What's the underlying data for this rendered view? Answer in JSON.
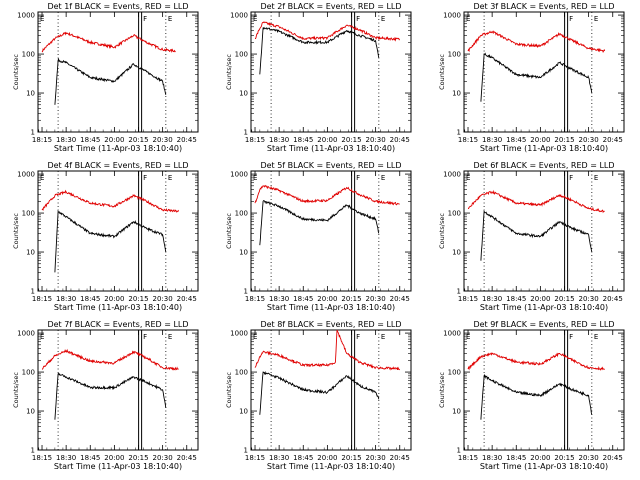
{
  "panels": [
    {
      "title": "Det 1f BLACK = Events, RED = LLD",
      "xlabel": "Start Time (11-Apr-03 18:10:40)",
      "ylabel": "Counts/sec",
      "letter_F": "F",
      "letter_E1": "E",
      "letter_E2": "E"
    },
    {
      "title": "Det 2f BLACK = Events, RED = LLD",
      "xlabel": "Start Time (11-Apr-03 18:10:40)",
      "ylabel": "Counts/sec",
      "letter_F": "F",
      "letter_E1": "E",
      "letter_E2": "E"
    },
    {
      "title": "Det 3f BLACK = Events, RED = LLD",
      "xlabel": "Start Time (11-Apr-03 18:10:40)",
      "ylabel": "Counts/sec",
      "letter_F": "F",
      "letter_E1": "E",
      "letter_E2": "E"
    },
    {
      "title": "Det 4f BLACK = Events, RED = LLD",
      "xlabel": "Start Time (11-Apr-03 18:10:40)",
      "ylabel": "Counts/sec",
      "letter_F": "F",
      "letter_E1": "E",
      "letter_E2": "E"
    },
    {
      "title": "Det 5f BLACK = Events, RED = LLD",
      "xlabel": "Start Time (11-Apr-03 18:10:40)",
      "ylabel": "Counts/sec",
      "letter_F": "F",
      "letter_E1": "E",
      "letter_E2": "E"
    },
    {
      "title": "Det 6f BLACK = Events, RED = LLD",
      "xlabel": "Start Time (11-Apr-03 18:10:40)",
      "ylabel": "Counts/sec",
      "letter_F": "F",
      "letter_E1": "E",
      "letter_E2": "E"
    },
    {
      "title": "Det 7f BLACK = Events, RED = LLD",
      "xlabel": "Start Time (11-Apr-03 18:10:40)",
      "ylabel": "Counts/sec",
      "letter_F": "F",
      "letter_E1": "E",
      "letter_E2": "E"
    },
    {
      "title": "Det 8f BLACK = Events, RED = LLD",
      "xlabel": "Start Time (11-Apr-03 18:10:40)",
      "ylabel": "Counts/sec",
      "letter_F": "F",
      "letter_E1": "E",
      "letter_E2": "E"
    },
    {
      "title": "Det 9f BLACK = Events, RED = LLD",
      "xlabel": "Start Time (11-Apr-03 18:10:40)",
      "ylabel": "Counts/sec",
      "letter_F": "F",
      "letter_E1": "E",
      "letter_E2": "E"
    }
  ],
  "x_ticks": [
    "18:15",
    "18:30",
    "18:45",
    "20:00",
    "20:15",
    "20:30",
    "20:45"
  ],
  "y_ticks": [
    "1",
    "10",
    "100",
    "1000"
  ],
  "chart_data": [
    {
      "type": "line",
      "title": "Det 1f BLACK = Events, RED = LLD",
      "xlabel": "Start Time (11-Apr-03 18:10:40)",
      "ylabel": "Counts/sec",
      "y_scale": "log",
      "ylim": [
        1,
        1200
      ],
      "x_tick_labels": [
        "18:15",
        "18:30",
        "18:45",
        "20:00",
        "20:15",
        "20:30",
        "20:45"
      ],
      "series": [
        {
          "name": "LLD",
          "color": "#e00000",
          "x": [
            "18:15",
            "18:23",
            "18:30",
            "18:45",
            "20:00",
            "20:12",
            "20:20",
            "20:30",
            "20:38"
          ],
          "y": [
            120,
            250,
            350,
            200,
            150,
            300,
            200,
            130,
            120
          ]
        },
        {
          "name": "Events",
          "color": "#000000",
          "x": [
            "18:23",
            "18:25",
            "18:30",
            "18:45",
            "20:00",
            "20:12",
            "20:20",
            "20:30",
            "20:32"
          ],
          "y": [
            5,
            70,
            60,
            25,
            20,
            55,
            35,
            20,
            9
          ]
        }
      ]
    },
    {
      "type": "line",
      "title": "Det 2f BLACK = Events, RED = LLD",
      "xlabel": "Start Time (11-Apr-03 18:10:40)",
      "ylabel": "Counts/sec",
      "y_scale": "log",
      "ylim": [
        1,
        1200
      ],
      "x_tick_labels": [
        "18:15",
        "18:30",
        "18:45",
        "20:00",
        "20:15",
        "20:30",
        "20:45"
      ],
      "series": [
        {
          "name": "LLD",
          "color": "#e00000",
          "x": [
            "18:15",
            "18:18",
            "18:20",
            "18:30",
            "18:45",
            "20:00",
            "20:12",
            "20:20",
            "20:30",
            "20:45"
          ],
          "y": [
            250,
            450,
            650,
            500,
            250,
            260,
            550,
            420,
            260,
            240
          ]
        },
        {
          "name": "Events",
          "color": "#000000",
          "x": [
            "18:18",
            "18:20",
            "18:30",
            "18:45",
            "20:00",
            "20:12",
            "20:20",
            "20:30",
            "20:32"
          ],
          "y": [
            30,
            480,
            380,
            200,
            200,
            400,
            300,
            220,
            80
          ]
        }
      ]
    },
    {
      "type": "line",
      "title": "Det 3f BLACK = Events, RED = LLD",
      "xlabel": "Start Time (11-Apr-03 18:10:40)",
      "ylabel": "Counts/sec",
      "y_scale": "log",
      "ylim": [
        1,
        1200
      ],
      "x_tick_labels": [
        "18:15",
        "18:30",
        "18:45",
        "20:00",
        "20:15",
        "20:30",
        "20:45"
      ],
      "series": [
        {
          "name": "LLD",
          "color": "#e00000",
          "x": [
            "18:15",
            "18:23",
            "18:30",
            "18:45",
            "20:00",
            "20:12",
            "20:20",
            "20:30",
            "20:40"
          ],
          "y": [
            120,
            300,
            380,
            180,
            160,
            330,
            220,
            140,
            120
          ]
        },
        {
          "name": "Events",
          "color": "#000000",
          "x": [
            "18:23",
            "18:25",
            "18:30",
            "18:45",
            "20:00",
            "20:12",
            "20:20",
            "20:30",
            "20:32"
          ],
          "y": [
            6,
            100,
            80,
            30,
            25,
            60,
            40,
            25,
            10
          ]
        }
      ]
    },
    {
      "type": "line",
      "title": "Det 4f BLACK = Events, RED = LLD",
      "xlabel": "Start Time (11-Apr-03 18:10:40)",
      "ylabel": "Counts/sec",
      "y_scale": "log",
      "ylim": [
        1,
        1200
      ],
      "x_tick_labels": [
        "18:15",
        "18:30",
        "18:45",
        "20:00",
        "20:15",
        "20:30",
        "20:45"
      ],
      "series": [
        {
          "name": "LLD",
          "color": "#e00000",
          "x": [
            "18:15",
            "18:23",
            "18:30",
            "18:45",
            "20:00",
            "20:12",
            "20:20",
            "20:30",
            "20:40"
          ],
          "y": [
            120,
            280,
            350,
            180,
            150,
            280,
            200,
            120,
            110
          ]
        },
        {
          "name": "Events",
          "color": "#000000",
          "x": [
            "18:23",
            "18:25",
            "18:30",
            "18:45",
            "20:00",
            "20:12",
            "20:20",
            "20:30",
            "20:32"
          ],
          "y": [
            3,
            110,
            80,
            30,
            25,
            60,
            40,
            28,
            10
          ]
        }
      ]
    },
    {
      "type": "line",
      "title": "Det 5f BLACK = Events, RED = LLD",
      "xlabel": "Start Time (11-Apr-03 18:10:40)",
      "ylabel": "Counts/sec",
      "y_scale": "log",
      "ylim": [
        1,
        1200
      ],
      "x_tick_labels": [
        "18:15",
        "18:30",
        "18:45",
        "20:00",
        "20:15",
        "20:30",
        "20:45"
      ],
      "series": [
        {
          "name": "LLD",
          "color": "#e00000",
          "x": [
            "18:15",
            "18:18",
            "18:20",
            "18:30",
            "18:45",
            "20:00",
            "20:12",
            "20:20",
            "20:30",
            "20:45"
          ],
          "y": [
            180,
            400,
            500,
            380,
            200,
            210,
            450,
            300,
            200,
            170
          ]
        },
        {
          "name": "Events",
          "color": "#000000",
          "x": [
            "18:18",
            "18:20",
            "18:30",
            "18:45",
            "20:00",
            "20:12",
            "20:20",
            "20:30",
            "20:32"
          ],
          "y": [
            15,
            200,
            150,
            70,
            65,
            160,
            100,
            70,
            30
          ]
        }
      ]
    },
    {
      "type": "line",
      "title": "Det 6f BLACK = Events, RED = LLD",
      "xlabel": "Start Time (11-Apr-03 18:10:40)",
      "ylabel": "Counts/sec",
      "y_scale": "log",
      "ylim": [
        1,
        1200
      ],
      "x_tick_labels": [
        "18:15",
        "18:30",
        "18:45",
        "20:00",
        "20:15",
        "20:30",
        "20:45"
      ],
      "series": [
        {
          "name": "LLD",
          "color": "#e00000",
          "x": [
            "18:15",
            "18:23",
            "18:30",
            "18:45",
            "20:00",
            "20:12",
            "20:20",
            "20:30",
            "20:40"
          ],
          "y": [
            130,
            280,
            350,
            180,
            160,
            290,
            210,
            130,
            110
          ]
        },
        {
          "name": "Events",
          "color": "#000000",
          "x": [
            "18:23",
            "18:25",
            "18:30",
            "18:45",
            "20:00",
            "20:12",
            "20:20",
            "20:30",
            "20:32"
          ],
          "y": [
            6,
            110,
            80,
            30,
            25,
            60,
            40,
            28,
            10
          ]
        }
      ]
    },
    {
      "type": "line",
      "title": "Det 7f BLACK = Events, RED = LLD",
      "xlabel": "Start Time (11-Apr-03 18:10:40)",
      "ylabel": "Counts/sec",
      "y_scale": "log",
      "ylim": [
        1,
        1200
      ],
      "x_tick_labels": [
        "18:15",
        "18:30",
        "18:45",
        "20:00",
        "20:15",
        "20:30",
        "20:45"
      ],
      "series": [
        {
          "name": "LLD",
          "color": "#e00000",
          "x": [
            "18:15",
            "18:23",
            "18:30",
            "18:45",
            "20:00",
            "20:12",
            "20:20",
            "20:30",
            "20:40"
          ],
          "y": [
            120,
            260,
            350,
            190,
            170,
            330,
            230,
            130,
            120
          ]
        },
        {
          "name": "Events",
          "color": "#000000",
          "x": [
            "18:23",
            "18:25",
            "18:30",
            "18:45",
            "20:00",
            "20:12",
            "20:20",
            "20:30",
            "20:32"
          ],
          "y": [
            6,
            90,
            75,
            40,
            40,
            75,
            55,
            35,
            12
          ]
        }
      ]
    },
    {
      "type": "line",
      "title": "Det 8f BLACK = Events, RED = LLD",
      "xlabel": "Start Time (11-Apr-03 18:10:40)",
      "ylabel": "Counts/sec",
      "y_scale": "log",
      "ylim": [
        1,
        1200
      ],
      "x_tick_labels": [
        "18:15",
        "18:30",
        "18:45",
        "20:00",
        "20:15",
        "20:30",
        "20:45"
      ],
      "series": [
        {
          "name": "LLD",
          "color": "#e00000",
          "x": [
            "18:15",
            "18:18",
            "18:20",
            "18:30",
            "18:45",
            "20:00",
            "20:05",
            "20:06",
            "20:12",
            "20:20",
            "20:30",
            "20:45"
          ],
          "y": [
            130,
            250,
            330,
            270,
            150,
            150,
            180,
            1200,
            300,
            180,
            130,
            120
          ]
        },
        {
          "name": "Events",
          "color": "#000000",
          "x": [
            "18:18",
            "18:20",
            "18:30",
            "18:45",
            "20:00",
            "20:12",
            "20:20",
            "20:30",
            "20:32"
          ],
          "y": [
            8,
            100,
            70,
            35,
            30,
            80,
            45,
            30,
            20
          ]
        }
      ]
    },
    {
      "type": "line",
      "title": "Det 9f BLACK = Events, RED = LLD",
      "xlabel": "Start Time (11-Apr-03 18:10:40)",
      "ylabel": "Counts/sec",
      "y_scale": "log",
      "ylim": [
        1,
        1200
      ],
      "x_tick_labels": [
        "18:15",
        "18:30",
        "18:45",
        "20:00",
        "20:15",
        "20:30",
        "20:45"
      ],
      "series": [
        {
          "name": "LLD",
          "color": "#e00000",
          "x": [
            "18:15",
            "18:23",
            "18:30",
            "18:45",
            "20:00",
            "20:12",
            "20:20",
            "20:30",
            "20:40"
          ],
          "y": [
            120,
            250,
            300,
            180,
            160,
            300,
            200,
            130,
            120
          ]
        },
        {
          "name": "Events",
          "color": "#000000",
          "x": [
            "18:23",
            "18:25",
            "18:30",
            "18:45",
            "20:00",
            "20:12",
            "20:20",
            "20:30",
            "20:32"
          ],
          "y": [
            6,
            80,
            60,
            30,
            25,
            50,
            35,
            25,
            8
          ]
        }
      ]
    }
  ]
}
